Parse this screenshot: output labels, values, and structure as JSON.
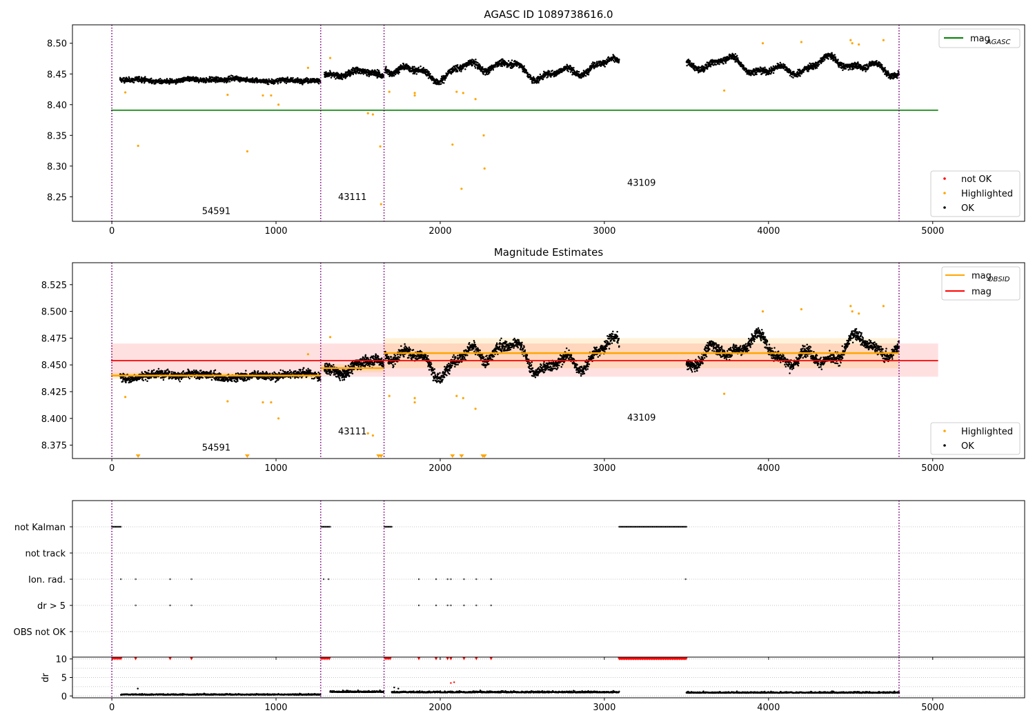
{
  "chart_data": [
    {
      "type": "scatter",
      "title": "AGASC ID 1089738616.0",
      "xlim": [
        -240,
        5560
      ],
      "ylim": [
        8.21,
        8.53
      ],
      "xticks": [
        0,
        1000,
        2000,
        3000,
        4000,
        5000
      ],
      "yticks": [
        8.25,
        8.3,
        8.35,
        8.4,
        8.45,
        8.5
      ],
      "ytick_labels": [
        "8.25",
        "8.30",
        "8.35",
        "8.40",
        "8.45",
        "8.50"
      ],
      "obsid_boundaries": [
        0,
        1272,
        1658,
        4795
      ],
      "obsid_labels": [
        {
          "text": "54591",
          "x": 636,
          "y": 8.222
        },
        {
          "text": "43111",
          "x": 1465,
          "y": 8.245
        },
        {
          "text": "43109",
          "x": 3226,
          "y": 8.268
        }
      ],
      "reference_lines": [
        {
          "name": "mag",
          "sub": "AGASC",
          "y": 8.391,
          "x": [
            -5,
            5033
          ],
          "color": "#008000"
        }
      ],
      "ok_segments": [
        {
          "x": [
            50,
            1270
          ],
          "base": 8.44,
          "noise": 0.006,
          "wave": 0.002,
          "n": 1200
        },
        {
          "x": [
            1295,
            1655
          ],
          "base": 8.448,
          "noise": 0.008,
          "wave": 0.006,
          "n": 420
        },
        {
          "x": [
            1665,
            3090
          ],
          "base": 8.457,
          "noise": 0.008,
          "wave": 0.013,
          "n": 1400
        },
        {
          "x": [
            3500,
            4795
          ],
          "base": 8.462,
          "noise": 0.008,
          "wave": 0.012,
          "n": 1300
        }
      ],
      "highlighted_points": [
        [
          82,
          8.42
        ],
        [
          160,
          8.333
        ],
        [
          705,
          8.416
        ],
        [
          825,
          8.324
        ],
        [
          920,
          8.415
        ],
        [
          970,
          8.415
        ],
        [
          1015,
          8.4
        ],
        [
          1195,
          8.46
        ],
        [
          1330,
          8.476
        ],
        [
          1560,
          8.386
        ],
        [
          1590,
          8.384
        ],
        [
          1635,
          8.332
        ],
        [
          1640,
          8.238
        ],
        [
          1690,
          8.421
        ],
        [
          1845,
          8.415
        ],
        [
          1845,
          8.419
        ],
        [
          2075,
          8.335
        ],
        [
          2100,
          8.421
        ],
        [
          2130,
          8.263
        ],
        [
          2140,
          8.419
        ],
        [
          2215,
          8.409
        ],
        [
          2265,
          8.35
        ],
        [
          2270,
          8.296
        ],
        [
          3730,
          8.423
        ],
        [
          3965,
          8.5
        ],
        [
          4200,
          8.502
        ],
        [
          4500,
          8.505
        ],
        [
          4510,
          8.5
        ],
        [
          4550,
          8.498
        ],
        [
          4700,
          8.505
        ]
      ],
      "legends": [
        {
          "position": "upper-right",
          "entries": [
            {
              "name": "mag",
              "sub": "AGASC",
              "marker": "line",
              "color": "#008000"
            }
          ]
        },
        {
          "position": "lower-right",
          "entries": [
            {
              "name": "not OK",
              "marker": "point",
              "color": "#ff0000"
            },
            {
              "name": "Highlighted",
              "marker": "point",
              "color": "#ffa500"
            },
            {
              "name": "OK",
              "marker": "point",
              "color": "#000000"
            }
          ]
        }
      ]
    },
    {
      "type": "scatter",
      "title": "Magnitude Estimates",
      "xlim": [
        -240,
        5560
      ],
      "ylim": [
        8.3625,
        8.5455
      ],
      "xticks": [
        0,
        1000,
        2000,
        3000,
        4000,
        5000
      ],
      "yticks": [
        8.375,
        8.4,
        8.425,
        8.45,
        8.475,
        8.5,
        8.525
      ],
      "ytick_labels": [
        "8.375",
        "8.400",
        "8.425",
        "8.450",
        "8.475",
        "8.500",
        "8.525"
      ],
      "obsid_boundaries": [
        0,
        1272,
        1658,
        4795
      ],
      "obsid_labels": [
        {
          "text": "54591",
          "x": 636,
          "y": 8.37
        },
        {
          "text": "43111",
          "x": 1465,
          "y": 8.385
        },
        {
          "text": "43109",
          "x": 3226,
          "y": 8.398
        }
      ],
      "mag_line": {
        "name": "mag",
        "y": 8.454,
        "band": [
          8.439,
          8.47
        ],
        "x": [
          -5,
          5033
        ],
        "color": "#ff0000"
      },
      "obsid_mags": [
        {
          "x": [
            -5,
            1272
          ],
          "y": 8.44,
          "band": [
            8.437,
            8.443
          ]
        },
        {
          "x": [
            1272,
            1658
          ],
          "y": 8.447,
          "band": [
            8.443,
            8.451
          ]
        },
        {
          "x": [
            1658,
            4795
          ],
          "y": 8.461,
          "band": [
            8.447,
            8.475
          ]
        }
      ],
      "ok_segments": [
        {
          "x": [
            50,
            1270
          ],
          "base": 8.44,
          "noise": 0.006,
          "wave": 0.002,
          "n": 1200
        },
        {
          "x": [
            1295,
            1655
          ],
          "base": 8.448,
          "noise": 0.008,
          "wave": 0.006,
          "n": 420
        },
        {
          "x": [
            1665,
            3090
          ],
          "base": 8.457,
          "noise": 0.008,
          "wave": 0.013,
          "n": 1400
        },
        {
          "x": [
            3500,
            4795
          ],
          "base": 8.462,
          "noise": 0.008,
          "wave": 0.012,
          "n": 1300
        }
      ],
      "highlighted_points": [
        [
          82,
          8.42
        ],
        [
          705,
          8.416
        ],
        [
          920,
          8.415
        ],
        [
          970,
          8.415
        ],
        [
          1015,
          8.4
        ],
        [
          1195,
          8.46
        ],
        [
          1330,
          8.476
        ],
        [
          1560,
          8.386
        ],
        [
          1590,
          8.384
        ],
        [
          1690,
          8.421
        ],
        [
          1845,
          8.415
        ],
        [
          1845,
          8.419
        ],
        [
          2100,
          8.421
        ],
        [
          2140,
          8.419
        ],
        [
          2215,
          8.409
        ],
        [
          3730,
          8.423
        ],
        [
          3965,
          8.5
        ],
        [
          4200,
          8.502
        ],
        [
          4500,
          8.505
        ],
        [
          4510,
          8.5
        ],
        [
          4550,
          8.498
        ],
        [
          4700,
          8.505
        ]
      ],
      "off_scale_markers": [
        160,
        825,
        1625,
        1640,
        2075,
        2130,
        2260,
        2270
      ],
      "legends": [
        {
          "position": "upper-right",
          "entries": [
            {
              "name": "mag",
              "sub": "OBSID",
              "marker": "line",
              "color": "#ffa500"
            },
            {
              "name": "mag",
              "marker": "line",
              "color": "#ff0000"
            }
          ]
        },
        {
          "position": "lower-right",
          "entries": [
            {
              "name": "Highlighted",
              "marker": "point",
              "color": "#ffa500"
            },
            {
              "name": "OK",
              "marker": "point",
              "color": "#000000"
            }
          ]
        }
      ]
    },
    {
      "type": "scatter",
      "title": "",
      "xlim": [
        -240,
        5560
      ],
      "categories": [
        "not Kalman",
        "not track",
        "Ion. rad.",
        "dr > 5",
        "OBS not OK"
      ],
      "obsid_boundaries": [
        0,
        1272,
        1658,
        4795
      ],
      "flags": {
        "not Kalman": {
          "ranges": [
            [
              0,
              55
            ],
            [
              1275,
              1330
            ],
            [
              1660,
              1705
            ],
            [
              3090,
              3500
            ]
          ]
        },
        "not track": {
          "ranges": []
        },
        "Ion. rad.": {
          "points": [
            55,
            145,
            355,
            485,
            1290,
            1320,
            1870,
            1975,
            2045,
            2065,
            2145,
            2220,
            2310,
            3495
          ]
        },
        "dr > 5": {
          "points": [
            145,
            355,
            485,
            1870,
            1975,
            2045,
            2065,
            2145,
            2220,
            2310
          ]
        },
        "OBS not OK": {
          "ranges": []
        }
      }
    },
    {
      "type": "scatter",
      "title": "",
      "ylabel": "dr",
      "xlim": [
        -240,
        5560
      ],
      "ylim": [
        -0.5,
        10.5
      ],
      "xticks": [
        0,
        1000,
        2000,
        3000,
        4000,
        5000
      ],
      "yticks": [
        0,
        5,
        10
      ],
      "ytick_labels": [
        "0",
        "5",
        "10"
      ],
      "obsid_boundaries": [
        0,
        1272,
        1658,
        4795
      ],
      "ok_segments": [
        {
          "x": [
            55,
            1270
          ],
          "base": 0.3,
          "noise": 0.25,
          "n": 600
        },
        {
          "x": [
            1330,
            1655
          ],
          "base": 1.0,
          "noise": 0.4,
          "n": 250
        },
        {
          "x": [
            1705,
            3090
          ],
          "base": 0.9,
          "noise": 0.4,
          "n": 700
        },
        {
          "x": [
            3500,
            4795
          ],
          "base": 0.8,
          "noise": 0.35,
          "n": 650
        }
      ],
      "ok_outliers": [
        [
          158,
          2.0
        ],
        [
          1720,
          2.3
        ],
        [
          1745,
          2.0
        ]
      ],
      "not_ok_points": [
        [
          2065,
          3.5
        ],
        [
          2085,
          3.7
        ]
      ],
      "clipped_points": [
        5,
        15,
        25,
        35,
        45,
        55,
        145,
        355,
        485,
        1275,
        1285,
        1295,
        1305,
        1315,
        1325,
        1665,
        1675,
        1685,
        1695,
        1870,
        1975,
        2045,
        2065,
        2145,
        2220,
        2310
      ],
      "clipped_ranges": [
        [
          3090,
          3500
        ]
      ]
    }
  ]
}
